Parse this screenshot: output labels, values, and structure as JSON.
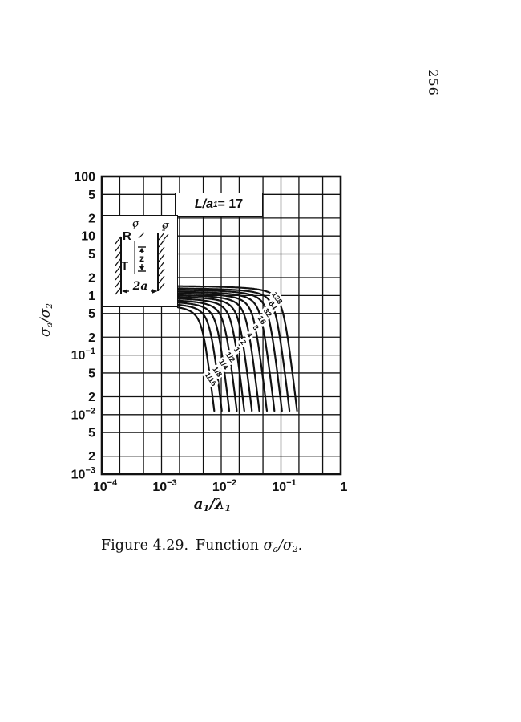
{
  "page": {
    "number": "256"
  },
  "caption": {
    "figure_label": "Figure 4.29.",
    "function_word": "Function ",
    "sigma_a": "σ",
    "sub_a": "a",
    "slash_sigma": "/σ",
    "sub_2": "2",
    "period": "."
  },
  "colors": {
    "ink": "#111111",
    "paper": "#ffffff"
  },
  "chart_data": {
    "type": "line",
    "scale": "log-log",
    "title": {
      "prefix": "L/a",
      "sub": "1",
      "suffix": " = 17"
    },
    "xlabel": {
      "base": "a",
      "sub1": "1",
      "mid": "/λ",
      "sub2": "1"
    },
    "ylabel": {
      "base": "σ",
      "sub1": "a",
      "mid": "/σ",
      "sub2": "2"
    },
    "x_log_range": [
      -4,
      0
    ],
    "y_log_range": [
      -3,
      2
    ],
    "grid": "on",
    "grid_subs": [
      1,
      2,
      5
    ],
    "x_ticks": [
      {
        "base": "10",
        "exp": "−4",
        "u": -4
      },
      {
        "base": "10",
        "exp": "−3",
        "u": -3
      },
      {
        "base": "10",
        "exp": "−2",
        "u": -2
      },
      {
        "base": "10",
        "exp": "−1",
        "u": -1
      },
      {
        "base": "1",
        "u": 0
      }
    ],
    "y_ticks": [
      {
        "base": "100",
        "v": 2
      },
      {
        "base": "5",
        "v": 1.699
      },
      {
        "base": "2",
        "v": 1.301
      },
      {
        "base": "10",
        "v": 1
      },
      {
        "base": "5",
        "v": 0.699
      },
      {
        "base": "2",
        "v": 0.301
      },
      {
        "base": "1",
        "v": 0
      },
      {
        "base": "5",
        "v": -0.301
      },
      {
        "base": "2",
        "v": -0.699
      },
      {
        "base": "10",
        "exp": "−1",
        "v": -1
      },
      {
        "base": "5",
        "v": -1.301
      },
      {
        "base": "2",
        "v": -1.699
      },
      {
        "base": "10",
        "exp": "−2",
        "v": -2
      },
      {
        "base": "5",
        "v": -2.301
      },
      {
        "base": "2",
        "v": -2.699
      },
      {
        "base": "10",
        "exp": "−3",
        "v": -3
      }
    ],
    "curves": [
      {
        "label": "1/16",
        "value": 0.0625,
        "y_flat": 0.75,
        "u_knee": -2.3
      },
      {
        "label": "1/8",
        "value": 0.125,
        "y_flat": 0.8,
        "u_knee": -2.177
      },
      {
        "label": "1/4",
        "value": 0.25,
        "y_flat": 0.85,
        "u_knee": -2.055
      },
      {
        "label": "1/2",
        "value": 0.5,
        "y_flat": 0.9,
        "u_knee": -1.932
      },
      {
        "label": "1",
        "value": 1,
        "y_flat": 0.96,
        "u_knee": -1.809
      },
      {
        "label": "2",
        "value": 2,
        "y_flat": 1.02,
        "u_knee": -1.686
      },
      {
        "label": "4",
        "value": 4,
        "y_flat": 1.08,
        "u_knee": -1.564
      },
      {
        "label": "8",
        "value": 8,
        "y_flat": 1.15,
        "u_knee": -1.441
      },
      {
        "label": "16",
        "value": 16,
        "y_flat": 1.22,
        "u_knee": -1.318
      },
      {
        "label": "32",
        "value": 32,
        "y_flat": 1.3,
        "u_knee": -1.195
      },
      {
        "label": "64",
        "value": 64,
        "y_flat": 1.38,
        "u_knee": -1.073
      },
      {
        "label": "128",
        "value": 128,
        "y_flat": 1.5,
        "u_knee": -0.95
      }
    ],
    "curve_model": {
      "steep_slope": 9,
      "knee_smooth": 0.12,
      "v_cutoff": -1.935,
      "u_start": -2.725,
      "label_v_start": -1.41,
      "label_v_step": 0.124,
      "label_angle_deg": 56
    },
    "inset": {
      "R": "R",
      "T": "T",
      "z": "z",
      "width_label": "2a",
      "sigma1": {
        "base": "σ",
        "sub": "1"
      },
      "sigma2": {
        "base": "σ",
        "sub": "2"
      }
    }
  }
}
